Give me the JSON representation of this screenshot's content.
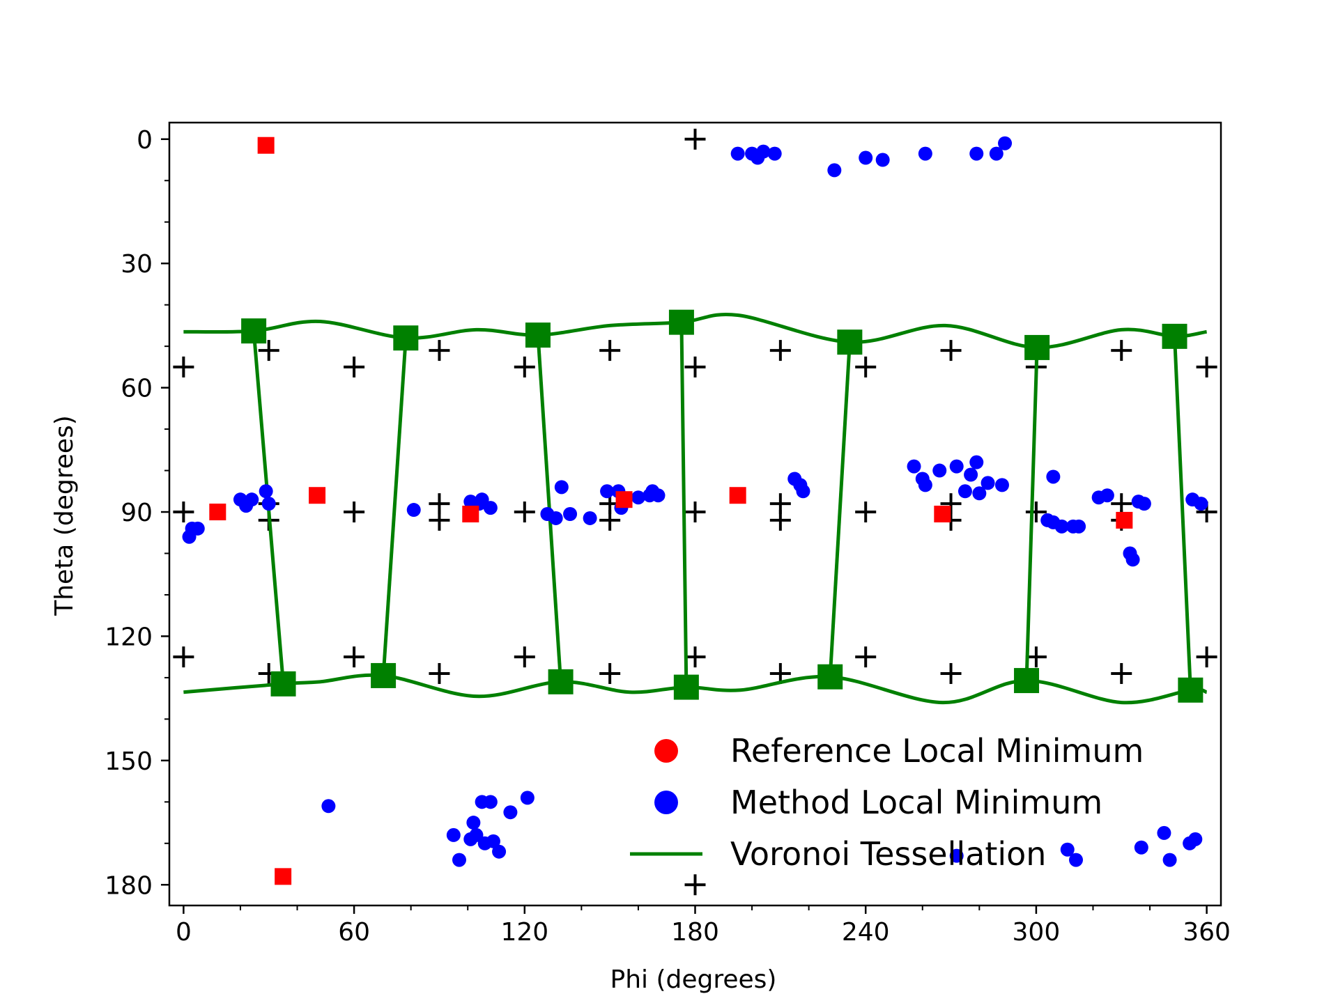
{
  "chart_data": {
    "type": "scatter",
    "title": "",
    "xlabel": "Phi (degrees)",
    "ylabel": "Theta (degrees)",
    "xlim": [
      -5,
      365
    ],
    "ylim": [
      185,
      -4
    ],
    "y_inverted": true,
    "grid": false,
    "legend_placement": "lower-right",
    "xticks": [
      0,
      60,
      120,
      180,
      240,
      300,
      360
    ],
    "yticks": [
      0,
      30,
      60,
      90,
      120,
      150,
      180
    ],
    "xtick_labels": [
      "0",
      "60",
      "120",
      "180",
      "240",
      "300",
      "360"
    ],
    "ytick_labels": [
      "0",
      "30",
      "60",
      "90",
      "120",
      "150",
      "180"
    ],
    "legend": [
      "Reference Local Minimum",
      "Method Local Minimum",
      "Voronoi Tessellation"
    ],
    "colors": {
      "reference": "#ff0000",
      "method": "#0000ff",
      "voronoi": "#008000",
      "grid_points": "#000000"
    },
    "series": [
      {
        "name": "Reference Local Minimum",
        "color": "#ff0000",
        "points": [
          [
            29,
            1.5
          ],
          [
            35,
            178
          ],
          [
            12,
            90
          ],
          [
            47,
            86
          ],
          [
            101,
            90.5
          ],
          [
            155,
            87
          ],
          [
            195,
            86
          ],
          [
            267,
            90.5
          ],
          [
            331,
            92
          ]
        ]
      },
      {
        "name": "Method Local Minimum",
        "color": "#0000ff",
        "points": [
          [
            195,
            3.5
          ],
          [
            200,
            3.5
          ],
          [
            202,
            4.5
          ],
          [
            204,
            3
          ],
          [
            208,
            3.5
          ],
          [
            229,
            7.5
          ],
          [
            240,
            4.5
          ],
          [
            246,
            5
          ],
          [
            261,
            3.5
          ],
          [
            279,
            3.5
          ],
          [
            286,
            3.5
          ],
          [
            289,
            1
          ],
          [
            2,
            96
          ],
          [
            3,
            94
          ],
          [
            5,
            94
          ],
          [
            20,
            87
          ],
          [
            22,
            88.5
          ],
          [
            24,
            87
          ],
          [
            29,
            85
          ],
          [
            30,
            88
          ],
          [
            81,
            89.5
          ],
          [
            101,
            87.5
          ],
          [
            104,
            88
          ],
          [
            105,
            87
          ],
          [
            108,
            89
          ],
          [
            128,
            90.5
          ],
          [
            131,
            91.5
          ],
          [
            133,
            84
          ],
          [
            136,
            90.5
          ],
          [
            143,
            91.5
          ],
          [
            149,
            85
          ],
          [
            153,
            85
          ],
          [
            154,
            89
          ],
          [
            160,
            86.5
          ],
          [
            164,
            86
          ],
          [
            165,
            85
          ],
          [
            167,
            86
          ],
          [
            215,
            82
          ],
          [
            217,
            83.5
          ],
          [
            218,
            85
          ],
          [
            257,
            79
          ],
          [
            260,
            82
          ],
          [
            261,
            83.5
          ],
          [
            266,
            80
          ],
          [
            272,
            79
          ],
          [
            275,
            85
          ],
          [
            277,
            81
          ],
          [
            279,
            78
          ],
          [
            280,
            85.5
          ],
          [
            283,
            83
          ],
          [
            288,
            83.5
          ],
          [
            306,
            81.5
          ],
          [
            304,
            92
          ],
          [
            306,
            92.5
          ],
          [
            309,
            93.5
          ],
          [
            313,
            93.5
          ],
          [
            315,
            93.5
          ],
          [
            322,
            86.5
          ],
          [
            325,
            86
          ],
          [
            333,
            100
          ],
          [
            334,
            101.5
          ],
          [
            336,
            87.5
          ],
          [
            338,
            88
          ],
          [
            355,
            87
          ],
          [
            358,
            88
          ],
          [
            51,
            161
          ],
          [
            95,
            168
          ],
          [
            97,
            174
          ],
          [
            101,
            169
          ],
          [
            102,
            165
          ],
          [
            103,
            168
          ],
          [
            105,
            160
          ],
          [
            106,
            170
          ],
          [
            108,
            160
          ],
          [
            109,
            169.5
          ],
          [
            111,
            172
          ],
          [
            115,
            162.5
          ],
          [
            121,
            159
          ],
          [
            272,
            173
          ],
          [
            311,
            171.5
          ],
          [
            314,
            174
          ],
          [
            337,
            171
          ],
          [
            345,
            167.5
          ],
          [
            347,
            174
          ],
          [
            354,
            170
          ],
          [
            356,
            169
          ]
        ]
      },
      {
        "name": "Voronoi Tessellation",
        "color": "#008000",
        "vertices": [
          [
            24.7,
            46.3
          ],
          [
            78.2,
            48.0
          ],
          [
            124.7,
            47.3
          ],
          [
            175.2,
            44.2
          ],
          [
            234.4,
            49.0
          ],
          [
            300.3,
            50.3
          ],
          [
            348.7,
            47.6
          ],
          [
            35.1,
            131.5
          ],
          [
            70.3,
            129.5
          ],
          [
            132.7,
            131.0
          ],
          [
            176.9,
            132.3
          ],
          [
            227.5,
            129.8
          ],
          [
            296.6,
            130.7
          ],
          [
            354.3,
            133.0
          ]
        ],
        "top_arcs": [
          [
            [
              0,
              46.5
            ],
            [
              24.7,
              46.3
            ],
            [
              48,
              44
            ],
            [
              78.2,
              48.0
            ],
            [
              103,
              46
            ],
            [
              124.7,
              47.3
            ],
            [
              150,
              45
            ],
            [
              175.2,
              44.2
            ],
            [
              195,
              42.5
            ],
            [
              234.4,
              49.0
            ],
            [
              268,
              45
            ],
            [
              300.3,
              50.3
            ],
            [
              330,
              46
            ],
            [
              348.7,
              47.6
            ],
            [
              360,
              46.5
            ]
          ]
        ],
        "bottom_arcs": [
          [
            [
              0,
              133.5
            ],
            [
              35.1,
              131.5
            ],
            [
              48,
              131
            ],
            [
              70.3,
              129.5
            ],
            [
              103,
              134.5
            ],
            [
              132.7,
              131.0
            ],
            [
              157,
              133.5
            ],
            [
              176.9,
              132.3
            ],
            [
              196,
              133
            ],
            [
              227.5,
              129.8
            ],
            [
              267,
              136
            ],
            [
              296.6,
              130.7
            ],
            [
              330,
              136
            ],
            [
              354.3,
              133.0
            ],
            [
              360,
              133.5
            ]
          ]
        ],
        "edges": [
          [
            [
              24.7,
              46.3
            ],
            [
              35.1,
              131.5
            ]
          ],
          [
            [
              78.2,
              48.0
            ],
            [
              70.3,
              129.5
            ]
          ],
          [
            [
              124.7,
              47.3
            ],
            [
              132.7,
              131.0
            ]
          ],
          [
            [
              175.2,
              44.2
            ],
            [
              176.9,
              132.3
            ]
          ],
          [
            [
              234.4,
              49.0
            ],
            [
              227.5,
              129.8
            ]
          ],
          [
            [
              300.3,
              50.3
            ],
            [
              296.6,
              130.7
            ]
          ],
          [
            [
              348.7,
              47.6
            ],
            [
              354.3,
              133.0
            ]
          ]
        ]
      },
      {
        "name": "grid-sites",
        "color": "#000000",
        "points": [
          [
            180,
            0
          ],
          [
            180,
            180
          ],
          [
            30,
            51
          ],
          [
            90,
            51
          ],
          [
            150,
            51
          ],
          [
            210,
            51
          ],
          [
            270,
            51
          ],
          [
            330,
            51
          ],
          [
            0,
            55
          ],
          [
            60,
            55
          ],
          [
            120,
            55
          ],
          [
            180,
            55
          ],
          [
            240,
            55
          ],
          [
            300,
            55
          ],
          [
            360,
            55
          ],
          [
            30,
            88
          ],
          [
            90,
            88
          ],
          [
            150,
            88
          ],
          [
            210,
            88
          ],
          [
            270,
            88
          ],
          [
            330,
            88
          ],
          [
            0,
            90
          ],
          [
            60,
            90
          ],
          [
            120,
            90
          ],
          [
            180,
            90
          ],
          [
            240,
            90
          ],
          [
            300,
            90
          ],
          [
            360,
            90
          ],
          [
            30,
            92
          ],
          [
            90,
            92
          ],
          [
            150,
            92
          ],
          [
            210,
            92
          ],
          [
            270,
            92
          ],
          [
            330,
            92
          ],
          [
            0,
            125
          ],
          [
            60,
            125
          ],
          [
            120,
            125
          ],
          [
            180,
            125
          ],
          [
            240,
            125
          ],
          [
            300,
            125
          ],
          [
            360,
            125
          ],
          [
            30,
            129
          ],
          [
            90,
            129
          ],
          [
            150,
            129
          ],
          [
            210,
            129
          ],
          [
            270,
            129
          ],
          [
            330,
            129
          ]
        ]
      }
    ]
  }
}
